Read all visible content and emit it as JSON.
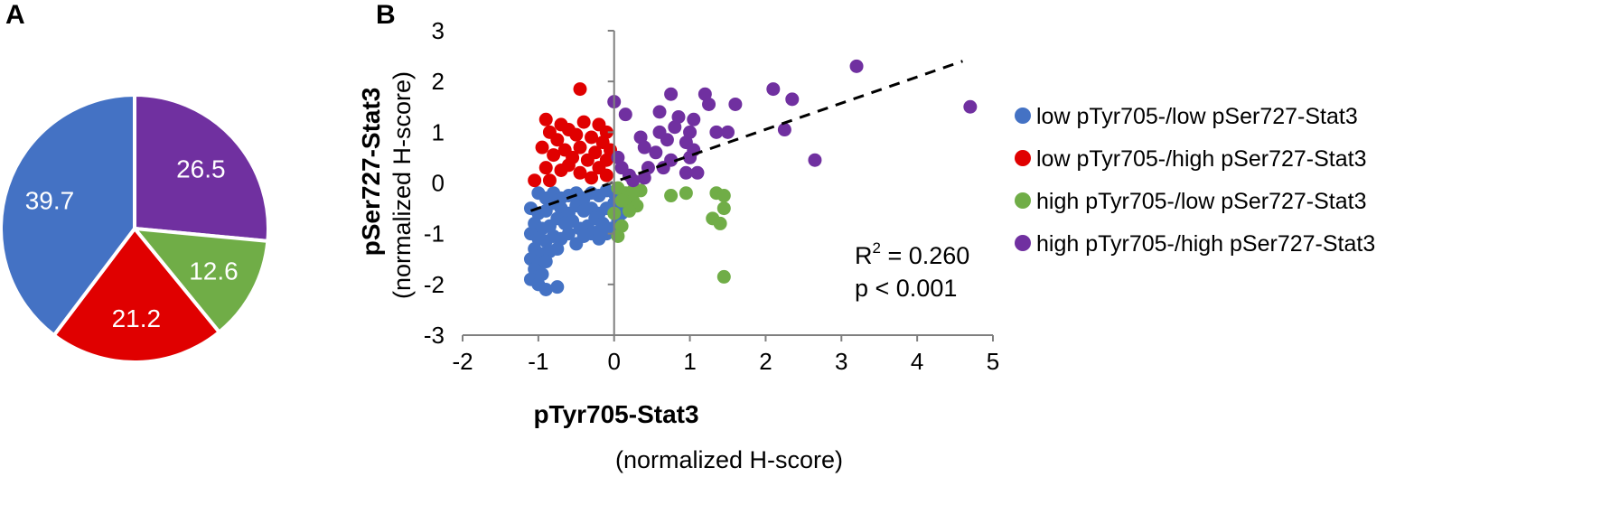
{
  "panels": {
    "a": "A",
    "b": "B"
  },
  "colors": {
    "blue": "#4472c4",
    "red": "#e00000",
    "green": "#70ad47",
    "purple": "#7030a0"
  },
  "chart_data": [
    {
      "type": "pie",
      "slices": [
        {
          "value": 26.5,
          "label": "26.5",
          "color": "#7030a0"
        },
        {
          "value": 12.6,
          "label": "12.6",
          "color": "#70ad47"
        },
        {
          "value": 21.2,
          "label": "21.2",
          "color": "#e00000"
        },
        {
          "value": 39.7,
          "label": "39.7",
          "color": "#4472c4"
        }
      ],
      "start": "12 o'clock",
      "direction": "clockwise"
    },
    {
      "type": "scatter",
      "xlabel": "pTyr705-Stat3",
      "xlabel_sub": "(normalized H-score)",
      "ylabel": "pSer727-Stat3",
      "ylabel_sub": "(normalized H-score)",
      "xlim": [
        -2,
        5
      ],
      "ylim": [
        -3,
        3
      ],
      "xticks": [
        -2,
        -1,
        0,
        1,
        2,
        3,
        4,
        5
      ],
      "yticks": [
        -3,
        -2,
        -1,
        0,
        1,
        2,
        3
      ],
      "grid": false,
      "legend_position": "right",
      "stats": {
        "r2_prefix": "R",
        "r2_sup": "2",
        "r2_value": " = 0.260",
        "p": "p < 0.001"
      },
      "trendline": {
        "x": [
          -1.1,
          4.6
        ],
        "y": [
          -0.55,
          2.4
        ],
        "style": "dashed"
      },
      "series": [
        {
          "name": "low pTyr705-/low pSer727-Stat3",
          "color": "#4472c4",
          "points": [
            [
              -1.0,
              -0.2
            ],
            [
              -0.9,
              -0.3
            ],
            [
              -0.8,
              -0.2
            ],
            [
              -0.7,
              -0.3
            ],
            [
              -0.6,
              -0.25
            ],
            [
              -0.5,
              -0.2
            ],
            [
              -0.4,
              -0.3
            ],
            [
              -0.3,
              -0.2
            ],
            [
              -0.2,
              -0.25
            ],
            [
              -0.1,
              -0.15
            ],
            [
              -1.1,
              -0.5
            ],
            [
              -1.0,
              -0.6
            ],
            [
              -0.9,
              -0.55
            ],
            [
              -0.8,
              -0.4
            ],
            [
              -0.7,
              -0.5
            ],
            [
              -0.6,
              -0.6
            ],
            [
              -0.5,
              -0.45
            ],
            [
              -0.4,
              -0.55
            ],
            [
              -0.3,
              -0.5
            ],
            [
              -0.2,
              -0.6
            ],
            [
              -0.1,
              -0.5
            ],
            [
              0.0,
              -0.4
            ],
            [
              -1.05,
              -0.8
            ],
            [
              -0.95,
              -0.9
            ],
            [
              -0.85,
              -0.85
            ],
            [
              -0.75,
              -0.7
            ],
            [
              -0.65,
              -0.8
            ],
            [
              -0.55,
              -0.75
            ],
            [
              -0.45,
              -0.9
            ],
            [
              -0.35,
              -0.85
            ],
            [
              -0.25,
              -0.7
            ],
            [
              -0.15,
              -0.8
            ],
            [
              -0.05,
              -0.9
            ],
            [
              0.05,
              -0.75
            ],
            [
              -1.1,
              -1.0
            ],
            [
              -1.0,
              -1.1
            ],
            [
              -0.9,
              -1.15
            ],
            [
              -0.8,
              -1.05
            ],
            [
              -0.7,
              -1.1
            ],
            [
              -0.6,
              -1.0
            ],
            [
              -0.5,
              -1.2
            ],
            [
              -0.4,
              -1.05
            ],
            [
              -0.3,
              -1.0
            ],
            [
              -0.2,
              -1.1
            ],
            [
              -0.1,
              -1.0
            ],
            [
              -1.05,
              -1.3
            ],
            [
              -0.95,
              -1.4
            ],
            [
              -0.85,
              -1.35
            ],
            [
              -0.75,
              -1.3
            ],
            [
              -1.1,
              -1.5
            ],
            [
              -1.0,
              -1.6
            ],
            [
              -0.9,
              -1.55
            ],
            [
              -1.05,
              -1.7
            ],
            [
              -0.95,
              -1.8
            ],
            [
              -1.1,
              -1.9
            ],
            [
              -1.0,
              -2.0
            ],
            [
              -0.9,
              -2.1
            ],
            [
              -0.75,
              -2.05
            ],
            [
              0.1,
              -0.6
            ],
            [
              0.0,
              -0.2
            ],
            [
              -0.2,
              -0.95
            ]
          ]
        },
        {
          "name": "low pTyr705-/high pSer727-Stat3",
          "color": "#e00000",
          "points": [
            [
              -0.45,
              1.85
            ],
            [
              -0.9,
              1.25
            ],
            [
              -0.7,
              1.15
            ],
            [
              -0.6,
              1.05
            ],
            [
              -0.4,
              1.2
            ],
            [
              -0.2,
              1.15
            ],
            [
              -0.1,
              1.0
            ],
            [
              -0.85,
              1.0
            ],
            [
              -0.75,
              0.85
            ],
            [
              -0.5,
              0.95
            ],
            [
              -0.3,
              0.9
            ],
            [
              -0.15,
              0.8
            ],
            [
              -0.95,
              0.7
            ],
            [
              -0.65,
              0.65
            ],
            [
              -0.45,
              0.7
            ],
            [
              -0.25,
              0.6
            ],
            [
              -0.05,
              0.65
            ],
            [
              -0.8,
              0.55
            ],
            [
              -0.55,
              0.5
            ],
            [
              -0.35,
              0.45
            ],
            [
              -0.1,
              0.45
            ],
            [
              -0.9,
              0.3
            ],
            [
              -0.7,
              0.25
            ],
            [
              -0.45,
              0.2
            ],
            [
              -0.2,
              0.3
            ],
            [
              -1.05,
              0.05
            ],
            [
              -0.85,
              0.05
            ],
            [
              -0.3,
              0.1
            ],
            [
              -0.1,
              0.15
            ],
            [
              -0.6,
              0.35
            ]
          ]
        },
        {
          "name": "high pTyr705-/low pSer727-Stat3",
          "color": "#70ad47",
          "points": [
            [
              0.05,
              -0.1
            ],
            [
              0.15,
              -0.2
            ],
            [
              0.25,
              -0.35
            ],
            [
              0.3,
              -0.45
            ],
            [
              0.2,
              -0.55
            ],
            [
              0.1,
              -0.85
            ],
            [
              0.05,
              -1.05
            ],
            [
              0.15,
              -0.3
            ],
            [
              0.0,
              -0.6
            ],
            [
              0.35,
              -0.15
            ],
            [
              0.75,
              -0.25
            ],
            [
              0.95,
              -0.2
            ],
            [
              1.35,
              -0.2
            ],
            [
              1.45,
              -0.25
            ],
            [
              1.45,
              -0.5
            ],
            [
              1.3,
              -0.7
            ],
            [
              1.4,
              -0.8
            ],
            [
              1.45,
              -1.85
            ],
            [
              0.25,
              -0.15
            ],
            [
              0.1,
              -0.35
            ]
          ]
        },
        {
          "name": "high pTyr705-/high pSer727-Stat3",
          "color": "#7030a0",
          "points": [
            [
              3.2,
              2.3
            ],
            [
              4.7,
              1.5
            ],
            [
              2.1,
              1.85
            ],
            [
              2.35,
              1.65
            ],
            [
              1.2,
              1.75
            ],
            [
              1.25,
              1.55
            ],
            [
              1.6,
              1.55
            ],
            [
              0.75,
              1.75
            ],
            [
              0.6,
              1.4
            ],
            [
              0.85,
              1.3
            ],
            [
              1.05,
              1.25
            ],
            [
              0.0,
              1.6
            ],
            [
              0.15,
              1.35
            ],
            [
              0.6,
              1.0
            ],
            [
              0.8,
              1.1
            ],
            [
              1.0,
              1.0
            ],
            [
              1.35,
              1.0
            ],
            [
              1.5,
              1.0
            ],
            [
              2.25,
              1.05
            ],
            [
              0.95,
              0.8
            ],
            [
              0.7,
              0.85
            ],
            [
              0.35,
              0.9
            ],
            [
              0.55,
              0.6
            ],
            [
              0.4,
              0.7
            ],
            [
              1.05,
              0.65
            ],
            [
              1.0,
              0.5
            ],
            [
              0.05,
              0.5
            ],
            [
              0.1,
              0.3
            ],
            [
              0.45,
              0.3
            ],
            [
              0.75,
              0.45
            ],
            [
              0.2,
              0.15
            ],
            [
              0.65,
              0.3
            ],
            [
              2.65,
              0.45
            ],
            [
              0.95,
              0.2
            ],
            [
              1.1,
              0.2
            ],
            [
              0.4,
              0.1
            ],
            [
              0.25,
              0.05
            ]
          ]
        }
      ]
    }
  ]
}
